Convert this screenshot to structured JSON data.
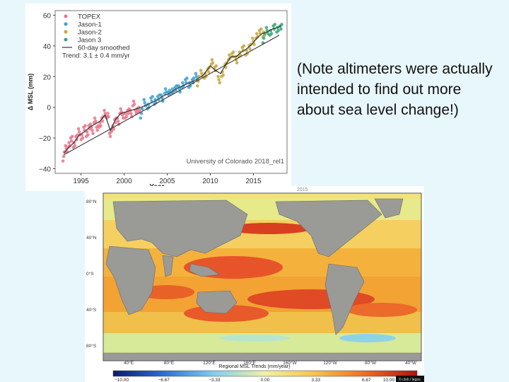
{
  "note": {
    "text": "(Note altimeters were actually intended to find out more about sea level change!)"
  },
  "chart_data": [
    {
      "type": "scatter",
      "title": "",
      "xlabel": "Year",
      "ylabel": "Δ MSL (mm)",
      "xlim": [
        1992,
        2018.9
      ],
      "ylim": [
        -43,
        63
      ],
      "x_ticks": [
        1995,
        2000,
        2005,
        2010,
        2015
      ],
      "x_tick_labels": [
        "1995",
        "2000",
        "2005",
        "2010",
        "2015"
      ],
      "y_ticks": [
        -40,
        -20,
        0,
        20,
        40,
        60
      ],
      "y_tick_labels": [
        "−40",
        "−20",
        "0",
        "20",
        "40",
        "60"
      ],
      "grid": false,
      "legend_position": "top-left",
      "annotation": "University of Colorado 2018_rel1",
      "series": [
        {
          "name": "TOPEX",
          "color": "#e8748a",
          "marker": "dot",
          "x": [
            1993.0,
            1993.3,
            1993.6,
            1993.9,
            1994.2,
            1994.5,
            1994.8,
            1995.1,
            1995.4,
            1995.7,
            1996.0,
            1996.3,
            1996.6,
            1996.9,
            1997.2,
            1997.5,
            1997.8,
            1998.1,
            1998.4,
            1998.7,
            1999.0,
            1999.3,
            1999.6,
            1999.9,
            2000.2,
            2000.5,
            2000.8,
            2001.1,
            2001.4,
            2001.7
          ],
          "y": [
            -30,
            -27,
            -25,
            -21,
            -24,
            -19,
            -16,
            -20,
            -14,
            -17,
            -12,
            -15,
            -9,
            -14,
            -11,
            -7,
            -4,
            -6,
            -18,
            -13,
            -8,
            -9,
            -3,
            -6,
            -5,
            -2,
            -4,
            2,
            -3,
            -1
          ]
        },
        {
          "name": "Jason-1",
          "color": "#3d9fd1",
          "marker": "dot",
          "x": [
            2002.0,
            2002.4,
            2002.8,
            2003.2,
            2003.6,
            2004.0,
            2004.4,
            2004.8,
            2005.2,
            2005.6,
            2006.0,
            2006.4,
            2006.8,
            2007.2,
            2007.6,
            2008.0,
            2008.4
          ],
          "y": [
            -2,
            3,
            0,
            5,
            4,
            7,
            6,
            10,
            9,
            11,
            13,
            12,
            14,
            17,
            15,
            18,
            20
          ]
        },
        {
          "name": "Jason-2",
          "color": "#c4a63c",
          "marker": "dot",
          "x": [
            2008.6,
            2009.0,
            2009.4,
            2009.8,
            2010.2,
            2010.6,
            2011.0,
            2011.4,
            2011.8,
            2012.2,
            2012.6,
            2013.0,
            2013.4,
            2013.8,
            2014.2,
            2014.6,
            2015.0,
            2015.4,
            2015.8,
            2016.2
          ],
          "y": [
            19,
            22,
            20,
            24,
            30,
            26,
            18,
            21,
            27,
            33,
            35,
            31,
            34,
            38,
            36,
            40,
            43,
            46,
            49,
            48
          ]
        },
        {
          "name": "Jason 3",
          "color": "#35a678",
          "marker": "dot",
          "x": [
            2016.2,
            2016.6,
            2017.0,
            2017.4,
            2017.8,
            2018.2
          ],
          "y": [
            47,
            50,
            48,
            52,
            51,
            53
          ]
        },
        {
          "name": "60-day smoothed",
          "color": "#333333",
          "marker": "line",
          "x": [
            1993.0,
            1993.6,
            1994.2,
            1994.8,
            1995.4,
            1996.0,
            1996.6,
            1997.2,
            1997.8,
            1998.4,
            1999.0,
            1999.6,
            2000.2,
            2000.8,
            2001.4,
            2002.0,
            2002.8,
            2003.6,
            2004.4,
            2005.2,
            2006.0,
            2006.8,
            2007.6,
            2008.4,
            2009.2,
            2010.0,
            2010.6,
            2011.2,
            2011.8,
            2012.4,
            2013.0,
            2013.6,
            2014.2,
            2014.8,
            2015.4,
            2016.0,
            2016.6,
            2017.2,
            2017.8,
            2018.2
          ],
          "y": [
            -30,
            -26,
            -23,
            -18,
            -16,
            -13,
            -11,
            -9,
            -5,
            -15,
            -8,
            -4,
            -3,
            -2,
            -1,
            0,
            2,
            4,
            7,
            9,
            12,
            14,
            16,
            18,
            21,
            27,
            24,
            22,
            28,
            33,
            33,
            36,
            38,
            41,
            45,
            48,
            49,
            51,
            52,
            53
          ]
        },
        {
          "name": "Trend: 3.1 ± 0.4 mm/yr",
          "color": "#222222",
          "marker": "trend",
          "x": [
            1993,
            2018
          ],
          "y": [
            -31,
            47
          ]
        }
      ]
    },
    {
      "type": "heatmap",
      "title": "",
      "colorbar_label": "Regional MSL Trends (mm/year)",
      "colorbar_ticks": [
        "−10.00",
        "−6.67",
        "−3.33",
        "0.00",
        "3.33",
        "6.67",
        "10.00"
      ],
      "colorbar_colors": [
        "#0a1a6e",
        "#2a6fd6",
        "#7fd0ef",
        "#f2f2a0",
        "#f6c24a",
        "#ee6a20",
        "#b01212"
      ],
      "lat_labels": [
        "80°N",
        "40°N",
        "0°S",
        "40°S",
        "80°S"
      ],
      "lon_labels": [
        "40°E",
        "80°E",
        "120°E",
        "160°E",
        "160°W",
        "120°W",
        "80°W",
        "40°W"
      ],
      "header_fragment": "2015",
      "credit": "© ctoh / legos"
    }
  ]
}
